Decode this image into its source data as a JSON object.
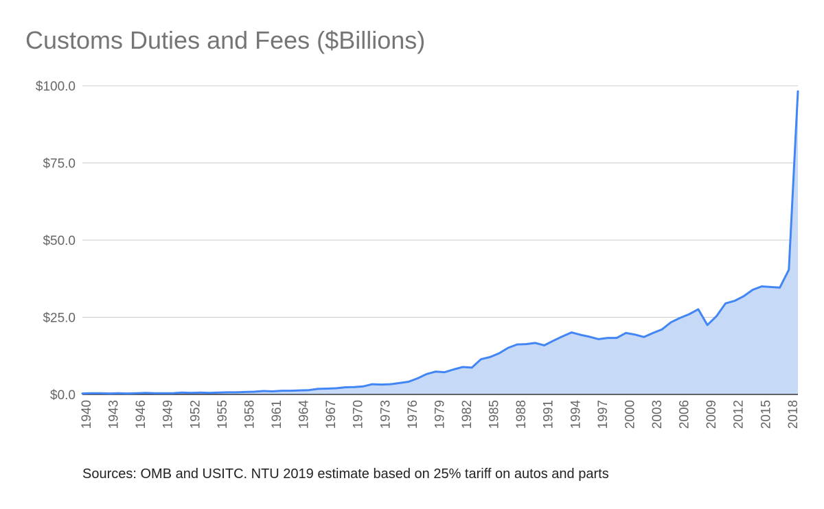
{
  "chart_data": {
    "type": "area",
    "title": "Customs Duties and Fees ($Billions)",
    "source_note": "Sources: OMB and USITC. NTU 2019 estimate based on 25% tariff on autos and parts",
    "xlabel": "",
    "ylabel": "",
    "ylim": [
      0,
      100
    ],
    "y_ticks": [
      {
        "value": 0,
        "label": "$0.0"
      },
      {
        "value": 25,
        "label": "$25.0"
      },
      {
        "value": 50,
        "label": "$50.0"
      },
      {
        "value": 75,
        "label": "$75.0"
      },
      {
        "value": 100,
        "label": "$100.0"
      }
    ],
    "x_tick_labels": [
      "1940",
      "1943",
      "1946",
      "1949",
      "1952",
      "1955",
      "1958",
      "1961",
      "1964",
      "1967",
      "1970",
      "1973",
      "1976",
      "1979",
      "1982",
      "1985",
      "1988",
      "1991",
      "1994",
      "1997",
      "2000",
      "2003",
      "2006",
      "2009",
      "2012",
      "2015",
      "2018"
    ],
    "grid": true,
    "legend": "none",
    "colors": {
      "line": "#4285f4",
      "fill": "#c6d9f7",
      "grid": "#cccccc",
      "axis": "#333333"
    },
    "x": [
      1940,
      1941,
      1942,
      1943,
      1944,
      1945,
      1946,
      1947,
      1948,
      1949,
      1950,
      1951,
      1952,
      1953,
      1954,
      1955,
      1956,
      1957,
      1958,
      1959,
      1960,
      1961,
      1962,
      1963,
      1964,
      1965,
      1966,
      1967,
      1968,
      1969,
      1970,
      1971,
      1972,
      1973,
      1974,
      1975,
      1976,
      1977,
      1978,
      1979,
      1980,
      1981,
      1982,
      1983,
      1984,
      1985,
      1986,
      1987,
      1988,
      1989,
      1990,
      1991,
      1992,
      1993,
      1994,
      1995,
      1996,
      1997,
      1998,
      1999,
      2000,
      2001,
      2002,
      2003,
      2004,
      2005,
      2006,
      2007,
      2008,
      2009,
      2010,
      2011,
      2012,
      2013,
      2014,
      2015,
      2016,
      2017,
      2018,
      2019
    ],
    "values": [
      0.3,
      0.4,
      0.4,
      0.3,
      0.4,
      0.3,
      0.4,
      0.5,
      0.4,
      0.4,
      0.4,
      0.6,
      0.5,
      0.6,
      0.5,
      0.6,
      0.7,
      0.7,
      0.8,
      0.9,
      1.1,
      1.0,
      1.2,
      1.2,
      1.3,
      1.4,
      1.8,
      1.9,
      2.0,
      2.3,
      2.4,
      2.6,
      3.3,
      3.2,
      3.3,
      3.7,
      4.1,
      5.2,
      6.6,
      7.4,
      7.2,
      8.1,
      8.9,
      8.7,
      11.4,
      12.1,
      13.3,
      15.1,
      16.2,
      16.3,
      16.7,
      15.9,
      17.4,
      18.8,
      20.1,
      19.3,
      18.7,
      17.9,
      18.3,
      18.3,
      19.9,
      19.4,
      18.6,
      19.9,
      21.1,
      23.4,
      24.8,
      26.0,
      27.6,
      22.5,
      25.3,
      29.5,
      30.3,
      31.8,
      33.9,
      35.0,
      34.8,
      34.6,
      40.4,
      98.2
    ]
  }
}
